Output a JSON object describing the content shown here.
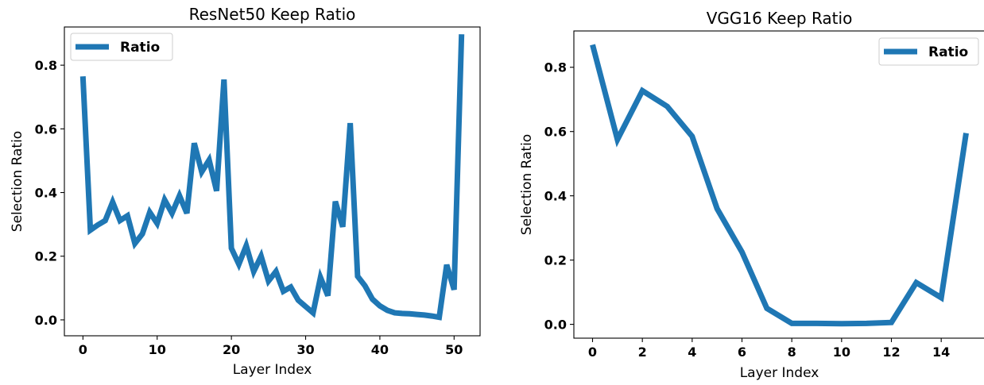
{
  "colors": {
    "line": "#1f77b4"
  },
  "chart_data": [
    {
      "type": "line",
      "title": "ResNet50 Keep Ratio",
      "xlabel": "Layer Index",
      "ylabel": "Selection Ratio",
      "xlim": [
        -2.5,
        53.5
      ],
      "ylim": [
        -0.05,
        0.92
      ],
      "xticks": [
        0,
        10,
        20,
        30,
        40,
        50
      ],
      "yticks": [
        0.0,
        0.2,
        0.4,
        0.6,
        0.8
      ],
      "xtick_labels": [
        "0",
        "10",
        "20",
        "30",
        "40",
        "50"
      ],
      "ytick_labels": [
        "0.0",
        "0.2",
        "0.4",
        "0.6",
        "0.8"
      ],
      "legend_position": "upper-left",
      "grid": false,
      "series": [
        {
          "name": "Ratio",
          "x": [
            0,
            1,
            2,
            3,
            4,
            5,
            6,
            7,
            8,
            9,
            10,
            11,
            12,
            13,
            14,
            15,
            16,
            17,
            18,
            19,
            20,
            21,
            22,
            23,
            24,
            25,
            26,
            27,
            28,
            29,
            30,
            31,
            32,
            33,
            34,
            35,
            36,
            37,
            38,
            39,
            40,
            41,
            42,
            43,
            44,
            45,
            46,
            47,
            48,
            49,
            50,
            51
          ],
          "values": [
            0.765,
            0.282,
            0.298,
            0.312,
            0.37,
            0.312,
            0.327,
            0.24,
            0.27,
            0.338,
            0.303,
            0.377,
            0.335,
            0.39,
            0.335,
            0.555,
            0.465,
            0.502,
            0.405,
            0.755,
            0.225,
            0.175,
            0.233,
            0.152,
            0.2,
            0.122,
            0.152,
            0.09,
            0.103,
            0.062,
            0.042,
            0.022,
            0.133,
            0.076,
            0.372,
            0.292,
            0.618,
            0.137,
            0.107,
            0.065,
            0.044,
            0.03,
            0.022,
            0.02,
            0.019,
            0.017,
            0.015,
            0.012,
            0.008,
            0.173,
            0.095,
            0.897
          ]
        }
      ]
    },
    {
      "type": "line",
      "title": "VGG16 Keep Ratio",
      "xlabel": "Layer Index",
      "ylabel": "Selection Ratio",
      "xlim": [
        -0.75,
        15.75
      ],
      "ylim": [
        -0.043,
        0.913
      ],
      "xticks": [
        0,
        2,
        4,
        6,
        8,
        10,
        12,
        14
      ],
      "yticks": [
        0.0,
        0.2,
        0.4,
        0.6,
        0.8
      ],
      "xtick_labels": [
        "0",
        "2",
        "4",
        "6",
        "8",
        "10",
        "12",
        "14"
      ],
      "ytick_labels": [
        "0.0",
        "0.2",
        "0.4",
        "0.6",
        "0.8"
      ],
      "legend_position": "upper-right",
      "grid": false,
      "series": [
        {
          "name": "Ratio",
          "x": [
            0,
            1,
            2,
            3,
            4,
            5,
            6,
            7,
            8,
            9,
            10,
            11,
            12,
            13,
            14,
            15
          ],
          "values": [
            0.87,
            0.575,
            0.727,
            0.678,
            0.585,
            0.36,
            0.225,
            0.05,
            0.003,
            0.003,
            0.002,
            0.003,
            0.006,
            0.13,
            0.083,
            0.595
          ]
        }
      ]
    }
  ]
}
